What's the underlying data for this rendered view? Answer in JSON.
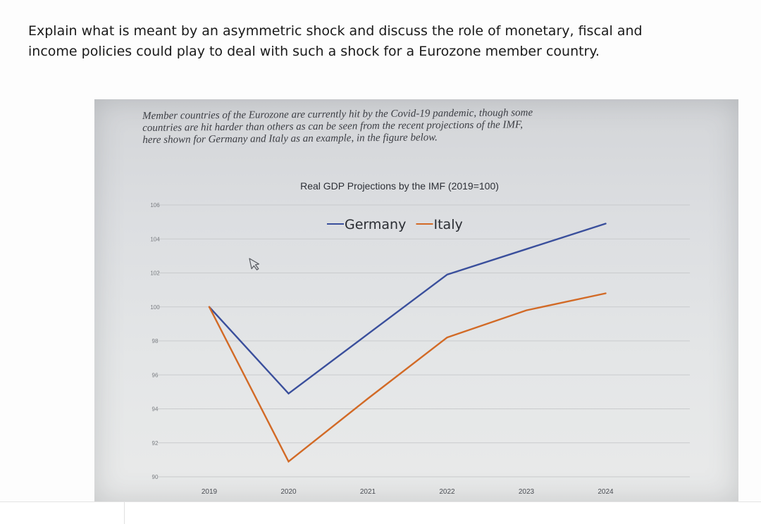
{
  "question": {
    "line1": "Explain what is meant by an asymmetric shock and discuss the role of monetary, fiscal and",
    "line2": "income policies could play to deal with such a shock for a Eurozone member country."
  },
  "intro": {
    "line1": "Member countries of the Eurozone are currently hit by the Covid-19 pandemic, though some",
    "line2": "countries are hit harder than others as can be seen from the recent projections of the IMF,",
    "line3": "here shown for Germany and Italy as an example, in the figure below."
  },
  "chart_data": {
    "type": "line",
    "title": "Real GDP Projections by the IMF (2019=100)",
    "xlabel": "",
    "ylabel": "",
    "x": [
      "2019",
      "2020",
      "2021",
      "2022",
      "2023",
      "2024"
    ],
    "ylim": [
      90,
      106
    ],
    "yticks": [
      106,
      104,
      102,
      100,
      98,
      96,
      94,
      92,
      90
    ],
    "grid": true,
    "legend": "top",
    "series": [
      {
        "name": "Germany",
        "color": "#3a4f9c",
        "values": [
          100,
          94.9,
          98.4,
          101.9,
          103.4,
          104.9
        ]
      },
      {
        "name": "Italy",
        "color": "#d26a26",
        "values": [
          100,
          90.9,
          94.6,
          98.2,
          99.8,
          100.8
        ]
      }
    ]
  },
  "icons": {
    "cursor": "mouse-pointer-icon"
  }
}
